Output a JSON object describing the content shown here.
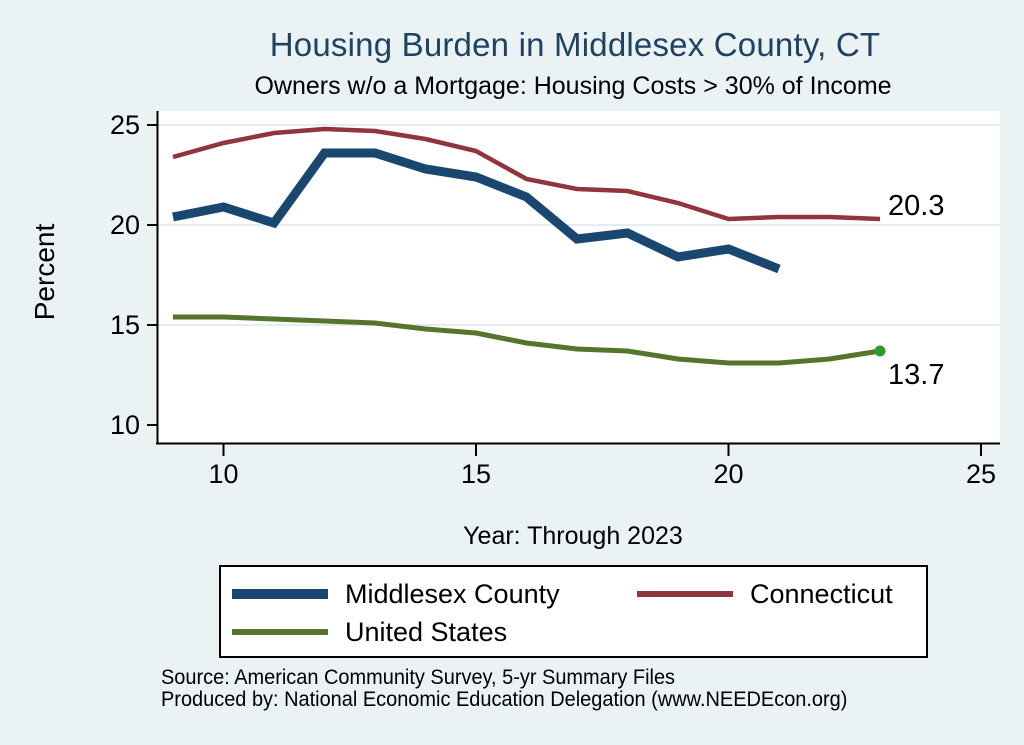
{
  "figure": {
    "title": "Housing Burden in Middlesex County, CT",
    "subtitle": "Owners w/o a Mortgage: Housing Costs > 30% of Income",
    "x_axis_label": "Year: Through 2023",
    "y_axis_label": "Percent",
    "source_line1": "Source: American Community Survey, 5-yr Summary Files",
    "source_line2": "Produced by: National Economic Education Delegation (www.NEEDEcon.org)",
    "background_color": "#eaf2f3",
    "plot_background_color": "#ffffff",
    "gridline_color": "#e4eef0",
    "title_color": "#1e4164"
  },
  "legend": {
    "items": [
      {
        "label": "Middlesex County",
        "color": "#1a476f"
      },
      {
        "label": "Connecticut",
        "color": "#90353b"
      },
      {
        "label": "United States",
        "color": "#55752f"
      }
    ]
  },
  "annotations": [
    {
      "text": "20.3",
      "year": 2023,
      "value": 20.3,
      "series": "Connecticut"
    },
    {
      "text": "13.7",
      "year": 2023,
      "value": 13.7,
      "series": "United States"
    }
  ],
  "chart_data": {
    "type": "line",
    "title": "Housing Burden in Middlesex County, CT",
    "subtitle": "Owners w/o a Mortgage: Housing Costs > 30% of Income",
    "xlabel": "Year: Through 2023",
    "ylabel": "Percent",
    "x": [
      2009,
      2010,
      2011,
      2012,
      2013,
      2014,
      2015,
      2016,
      2017,
      2018,
      2019,
      2020,
      2021,
      2022,
      2023
    ],
    "series": [
      {
        "name": "Middlesex County",
        "color": "#1a476f",
        "line_width": 9,
        "values": [
          20.4,
          20.9,
          20.1,
          23.6,
          23.6,
          22.8,
          22.4,
          21.4,
          19.3,
          19.6,
          18.4,
          18.8,
          17.8,
          null,
          null
        ]
      },
      {
        "name": "Connecticut",
        "color": "#90353b",
        "line_width": 4.5,
        "values": [
          23.4,
          24.1,
          24.6,
          24.8,
          24.7,
          24.3,
          23.7,
          22.3,
          21.8,
          21.7,
          21.1,
          20.3,
          20.4,
          20.4,
          20.3
        ]
      },
      {
        "name": "United States",
        "color": "#55752f",
        "line_width": 5,
        "end_marker_color": "#2e9b2e",
        "values": [
          15.4,
          15.4,
          15.3,
          15.2,
          15.1,
          14.8,
          14.6,
          14.1,
          13.8,
          13.7,
          13.3,
          13.1,
          13.1,
          13.3,
          13.7
        ]
      }
    ],
    "x_ticks": [
      {
        "value": 2010,
        "label": "10"
      },
      {
        "value": 2015,
        "label": "15"
      },
      {
        "value": 2020,
        "label": "20"
      },
      {
        "value": 2025,
        "label": "25"
      }
    ],
    "y_ticks": [
      {
        "value": 10,
        "label": "10",
        "grid": false
      },
      {
        "value": 15,
        "label": "15",
        "grid": true
      },
      {
        "value": 20,
        "label": "20",
        "grid": true
      },
      {
        "value": 25,
        "label": "25",
        "grid": true
      }
    ],
    "xlim": [
      2008.7,
      2025.4
    ],
    "ylim": [
      9.2,
      25.7
    ],
    "grid": "horizontal-light",
    "legend_position": "bottom"
  }
}
